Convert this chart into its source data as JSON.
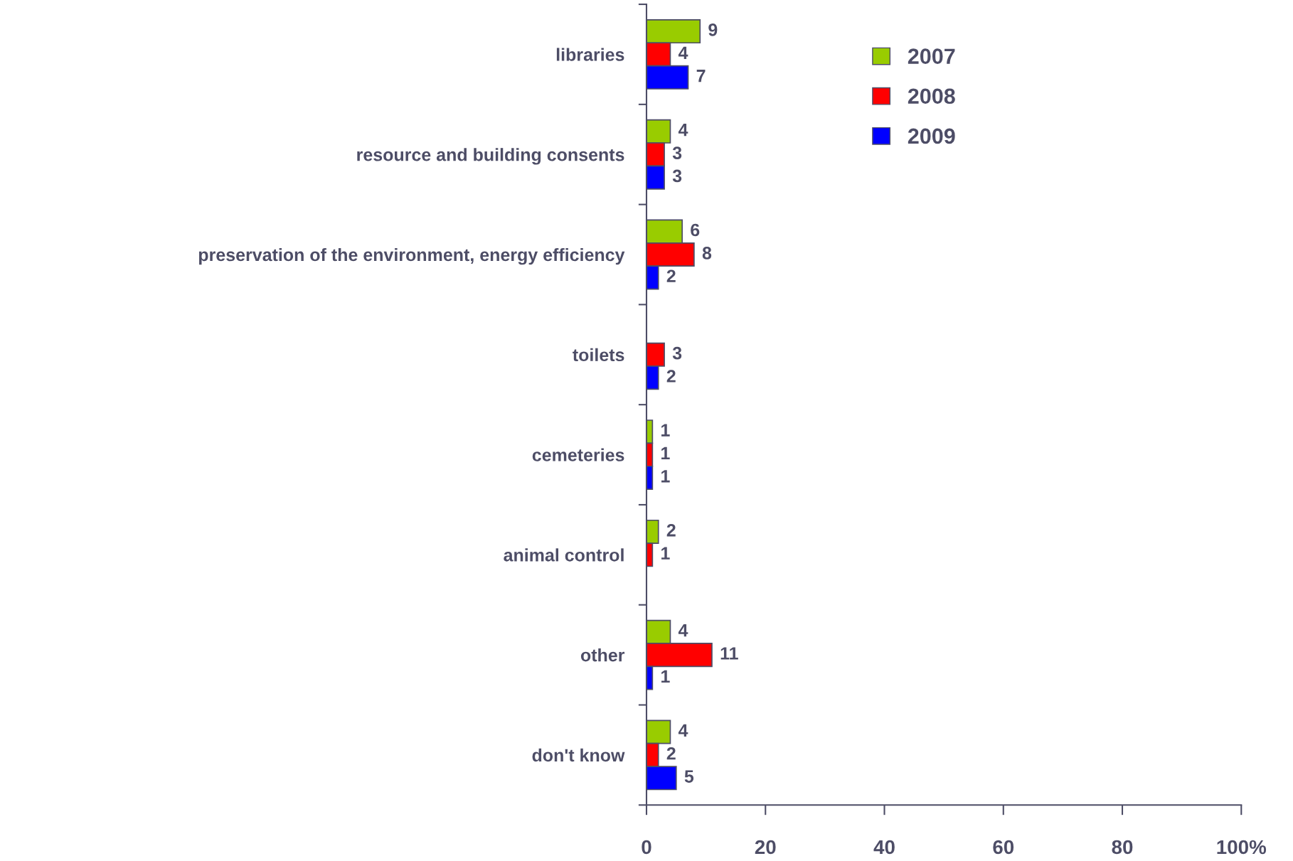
{
  "chart_data": {
    "type": "bar",
    "orientation": "horizontal",
    "categories": [
      "libraries",
      "resource and building consents",
      "preservation of the environment, energy efficiency",
      "toilets",
      "cemeteries",
      "animal control",
      "other",
      "don't know"
    ],
    "series": [
      {
        "name": "2007",
        "color": "#99cc00",
        "values": [
          9,
          4,
          6,
          null,
          1,
          2,
          4,
          4
        ]
      },
      {
        "name": "2008",
        "color": "#ff0000",
        "values": [
          4,
          3,
          8,
          3,
          1,
          1,
          11,
          2
        ]
      },
      {
        "name": "2009",
        "color": "#0000ff",
        "values": [
          7,
          3,
          2,
          2,
          1,
          null,
          1,
          5
        ]
      }
    ],
    "xlim": [
      0,
      100
    ],
    "xticks": [
      0,
      20,
      40,
      60,
      80,
      {
        "value": 100,
        "label": "100%"
      }
    ],
    "data_labels": true,
    "legend": "top",
    "grid": false
  }
}
